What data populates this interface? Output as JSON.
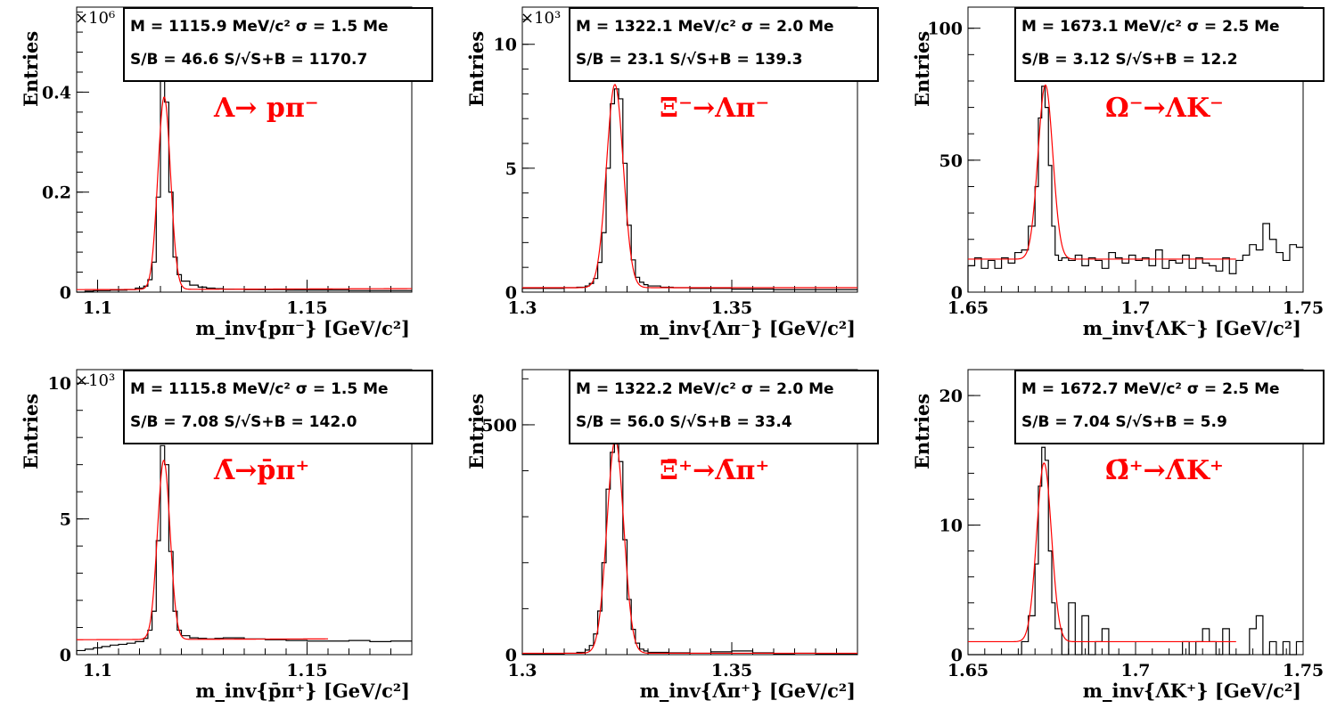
{
  "style": {
    "data_color": "#000000",
    "fit_color": "#ff0000",
    "label_color": "#ff0000"
  },
  "chart_data": [
    {
      "type": "area",
      "series_kind": "histogram-with-fit",
      "xlabel": "m_inv{pπ⁻} [GeV/c²]",
      "ylabel": "Entries",
      "y_multiplier": "×10⁶",
      "decay_label": "Λ→ pπ⁻",
      "stats": {
        "line1": "M = 1115.9 MeV/c² σ = 1.5 Me",
        "line2": "S/B = 46.6   S/√S+B = 1170.7"
      },
      "xlim": [
        1.095,
        1.175
      ],
      "ylim": [
        0,
        0.57
      ],
      "xticks": [
        1.1,
        1.15
      ],
      "xtick_labels": [
        "1.1",
        "1.15"
      ],
      "yticks": [
        0,
        0.2,
        0.4
      ],
      "ytick_labels": [
        "0",
        "0.2",
        "0.4"
      ],
      "fit": {
        "mean": 1.1159,
        "sigma": 0.0015,
        "amp": 0.385,
        "bg": [
          0.005,
          0.002
        ]
      },
      "x": [
        1.095,
        1.097,
        1.099,
        1.101,
        1.103,
        1.105,
        1.107,
        1.109,
        1.111,
        1.112,
        1.113,
        1.114,
        1.115,
        1.116,
        1.117,
        1.118,
        1.119,
        1.12,
        1.122,
        1.124,
        1.126,
        1.128,
        1.13,
        1.135,
        1.14,
        1.145,
        1.15,
        1.155,
        1.16,
        1.165,
        1.17
      ],
      "values": [
        0.0,
        0.002,
        0.003,
        0.003,
        0.004,
        0.004,
        0.005,
        0.008,
        0.012,
        0.025,
        0.06,
        0.19,
        0.43,
        0.38,
        0.2,
        0.07,
        0.035,
        0.022,
        0.014,
        0.01,
        0.008,
        0.007,
        0.006,
        0.005,
        0.005,
        0.004,
        0.004,
        0.004,
        0.003,
        0.003,
        0.003
      ]
    },
    {
      "type": "area",
      "series_kind": "histogram-with-fit",
      "xlabel": "m_inv{Λπ⁻} [GeV/c²]",
      "ylabel": "Entries",
      "y_multiplier": "×10³",
      "decay_label": "Ξ⁻→Λπ⁻",
      "stats": {
        "line1": "M = 1322.1 MeV/c² σ = 2.0 Me",
        "line2": "S/B = 23.1   S/√S+B = 139.3"
      },
      "xlim": [
        1.3,
        1.38
      ],
      "ylim": [
        0,
        11.5
      ],
      "xticks": [
        1.3,
        1.35
      ],
      "xtick_labels": [
        "1.3",
        "1.35"
      ],
      "yticks": [
        0,
        5,
        10
      ],
      "ytick_labels": [
        "0",
        "5",
        "10"
      ],
      "fit": {
        "mean": 1.3221,
        "sigma": 0.002,
        "amp": 8.2,
        "bg": [
          0.18,
          0.0
        ]
      },
      "x": [
        1.3,
        1.305,
        1.31,
        1.313,
        1.315,
        1.316,
        1.317,
        1.318,
        1.319,
        1.32,
        1.321,
        1.322,
        1.323,
        1.324,
        1.325,
        1.326,
        1.327,
        1.328,
        1.329,
        1.33,
        1.333,
        1.336,
        1.34,
        1.35,
        1.36,
        1.37
      ],
      "values": [
        0.15,
        0.15,
        0.18,
        0.2,
        0.25,
        0.35,
        0.55,
        1.2,
        2.4,
        5.0,
        7.6,
        8.2,
        7.8,
        5.2,
        2.7,
        1.3,
        0.6,
        0.4,
        0.3,
        0.25,
        0.2,
        0.18,
        0.15,
        0.12,
        0.1,
        0.1
      ]
    },
    {
      "type": "area",
      "series_kind": "histogram-with-fit",
      "xlabel": "m_inv{ΛK⁻} [GeV/c²]",
      "ylabel": "Entries",
      "y_multiplier": "",
      "decay_label": "Ω⁻→ΛK⁻",
      "stats": {
        "line1": "M = 1673.1 MeV/c² σ = 2.5 Me",
        "line2": "S/B = 3.12   S/√S+B = 12.2"
      },
      "xlim": [
        1.65,
        1.75
      ],
      "ylim": [
        0,
        108
      ],
      "xticks": [
        1.65,
        1.7,
        1.75
      ],
      "xtick_labels": [
        "1.65",
        "1.7",
        "1.75"
      ],
      "yticks": [
        0,
        50,
        100
      ],
      "ytick_labels": [
        "0",
        "50",
        "100"
      ],
      "fit": {
        "mean": 1.6731,
        "sigma": 0.0022,
        "amp": 66,
        "bg": [
          12.5,
          0.0
        ],
        "range": [
          1.65,
          1.73
        ]
      },
      "x": [
        1.65,
        1.652,
        1.654,
        1.656,
        1.658,
        1.66,
        1.662,
        1.664,
        1.666,
        1.668,
        1.67,
        1.671,
        1.672,
        1.673,
        1.674,
        1.675,
        1.676,
        1.677,
        1.678,
        1.68,
        1.682,
        1.684,
        1.686,
        1.688,
        1.69,
        1.692,
        1.694,
        1.696,
        1.698,
        1.7,
        1.702,
        1.704,
        1.706,
        1.708,
        1.71,
        1.712,
        1.714,
        1.716,
        1.718,
        1.72,
        1.722,
        1.724,
        1.726,
        1.728,
        1.73,
        1.732,
        1.734,
        1.736,
        1.738,
        1.74,
        1.742,
        1.744,
        1.746,
        1.748
      ],
      "values": [
        10,
        13,
        9,
        12,
        9,
        13,
        11,
        15,
        16,
        25,
        40,
        66,
        78,
        70,
        48,
        25,
        14,
        12,
        13,
        12,
        14,
        10,
        13,
        12,
        9,
        15,
        13,
        11,
        14,
        12,
        13,
        10,
        16,
        9,
        12,
        11,
        14,
        9,
        13,
        11,
        10,
        8,
        13,
        7,
        12,
        14,
        18,
        16,
        26,
        20,
        15,
        12,
        18,
        17
      ]
    },
    {
      "type": "area",
      "series_kind": "histogram-with-fit",
      "xlabel": "m_inv{p̄π⁺} [GeV/c²]",
      "ylabel": "Entries",
      "y_multiplier": "×10³",
      "decay_label": "Λ̄→p̄π⁺",
      "stats": {
        "line1": "M = 1115.8 MeV/c² σ = 1.5 Me",
        "line2": "S/B = 7.08   S/√S+B = 142.0"
      },
      "xlim": [
        1.095,
        1.175
      ],
      "ylim": [
        0,
        10.5
      ],
      "xticks": [
        1.1,
        1.15
      ],
      "xtick_labels": [
        "1.1",
        "1.15"
      ],
      "yticks": [
        0,
        5,
        10
      ],
      "ytick_labels": [
        "0",
        "5",
        "10"
      ],
      "fit": {
        "mean": 1.1158,
        "sigma": 0.0015,
        "amp": 6.6,
        "bg": [
          0.55,
          0.04
        ],
        "range": [
          1.095,
          1.155
        ]
      },
      "x": [
        1.095,
        1.097,
        1.099,
        1.101,
        1.103,
        1.105,
        1.107,
        1.109,
        1.111,
        1.112,
        1.113,
        1.114,
        1.115,
        1.116,
        1.117,
        1.118,
        1.119,
        1.12,
        1.122,
        1.124,
        1.126,
        1.128,
        1.13,
        1.135,
        1.14,
        1.145,
        1.15,
        1.155,
        1.16,
        1.165,
        1.17
      ],
      "values": [
        0.15,
        0.2,
        0.25,
        0.3,
        0.35,
        0.38,
        0.42,
        0.48,
        0.6,
        0.9,
        1.6,
        4.2,
        7.7,
        7.0,
        3.8,
        1.6,
        0.9,
        0.7,
        0.62,
        0.6,
        0.58,
        0.6,
        0.62,
        0.58,
        0.55,
        0.52,
        0.5,
        0.5,
        0.52,
        0.48,
        0.5
      ]
    },
    {
      "type": "area",
      "series_kind": "histogram-with-fit",
      "xlabel": "m_inv{Λ̄π⁺} [GeV/c²]",
      "ylabel": "Entries",
      "y_multiplier": "",
      "decay_label": "Ξ̄⁺→Λ̄π⁺",
      "stats": {
        "line1": "M = 1322.2 MeV/c² σ = 2.0 Me",
        "line2": "S/B = 56.0   S/√S+B = 33.4"
      },
      "xlim": [
        1.3,
        1.38
      ],
      "ylim": [
        0,
        620
      ],
      "xticks": [
        1.3,
        1.35
      ],
      "xtick_labels": [
        "1.3",
        "1.35"
      ],
      "yticks": [
        0,
        500
      ],
      "ytick_labels": [
        "0",
        "500"
      ],
      "fit": {
        "mean": 1.3222,
        "sigma": 0.002,
        "amp": 465,
        "bg": [
          3,
          0.0
        ]
      },
      "x": [
        1.3,
        1.305,
        1.31,
        1.313,
        1.315,
        1.316,
        1.317,
        1.318,
        1.319,
        1.32,
        1.321,
        1.322,
        1.323,
        1.324,
        1.325,
        1.326,
        1.327,
        1.328,
        1.329,
        1.33,
        1.335,
        1.34,
        1.345,
        1.35,
        1.355,
        1.36,
        1.365,
        1.37,
        1.375
      ],
      "values": [
        2,
        2,
        3,
        5,
        10,
        20,
        45,
        95,
        200,
        360,
        440,
        465,
        420,
        250,
        120,
        55,
        25,
        12,
        8,
        5,
        4,
        3,
        6,
        8,
        4,
        2,
        3,
        2,
        2
      ]
    },
    {
      "type": "area",
      "series_kind": "histogram-with-fit",
      "xlabel": "m_inv{Λ̄K⁺} [GeV/c²]",
      "ylabel": "Entries",
      "y_multiplier": "",
      "decay_label": "Ω̄⁺→Λ̄K⁺",
      "stats": {
        "line1": "M = 1672.7 MeV/c² σ = 2.5 Me",
        "line2": "S/B = 7.04   S/√S+B = 5.9"
      },
      "xlim": [
        1.65,
        1.75
      ],
      "ylim": [
        0,
        22
      ],
      "xticks": [
        1.65,
        1.7,
        1.75
      ],
      "xtick_labels": [
        "1.65",
        "1.7",
        "1.75"
      ],
      "yticks": [
        0,
        10,
        20
      ],
      "ytick_labels": [
        "0",
        "10",
        "20"
      ],
      "fit": {
        "mean": 1.6727,
        "sigma": 0.0022,
        "amp": 13.8,
        "bg": [
          1.0,
          0.0
        ],
        "range": [
          1.65,
          1.73
        ]
      },
      "x": [
        1.65,
        1.652,
        1.654,
        1.656,
        1.658,
        1.66,
        1.662,
        1.664,
        1.666,
        1.668,
        1.67,
        1.671,
        1.672,
        1.673,
        1.674,
        1.675,
        1.676,
        1.677,
        1.678,
        1.68,
        1.682,
        1.684,
        1.686,
        1.688,
        1.69,
        1.692,
        1.694,
        1.696,
        1.698,
        1.7,
        1.702,
        1.704,
        1.706,
        1.708,
        1.71,
        1.712,
        1.714,
        1.716,
        1.718,
        1.72,
        1.722,
        1.724,
        1.726,
        1.728,
        1.73,
        1.732,
        1.734,
        1.736,
        1.738,
        1.74,
        1.742,
        1.744,
        1.746,
        1.748
      ],
      "values": [
        0,
        0,
        0,
        0,
        0,
        0,
        0,
        0,
        1,
        3,
        7,
        13,
        16,
        15,
        8,
        4,
        2,
        2,
        0,
        4,
        0,
        3,
        0,
        1,
        2,
        0,
        0,
        0,
        0,
        0,
        0,
        0,
        0,
        0,
        0,
        0,
        1,
        0,
        1,
        2,
        1,
        0,
        2,
        0,
        0,
        0,
        2,
        3,
        0,
        1,
        0,
        1,
        0,
        1
      ]
    }
  ]
}
